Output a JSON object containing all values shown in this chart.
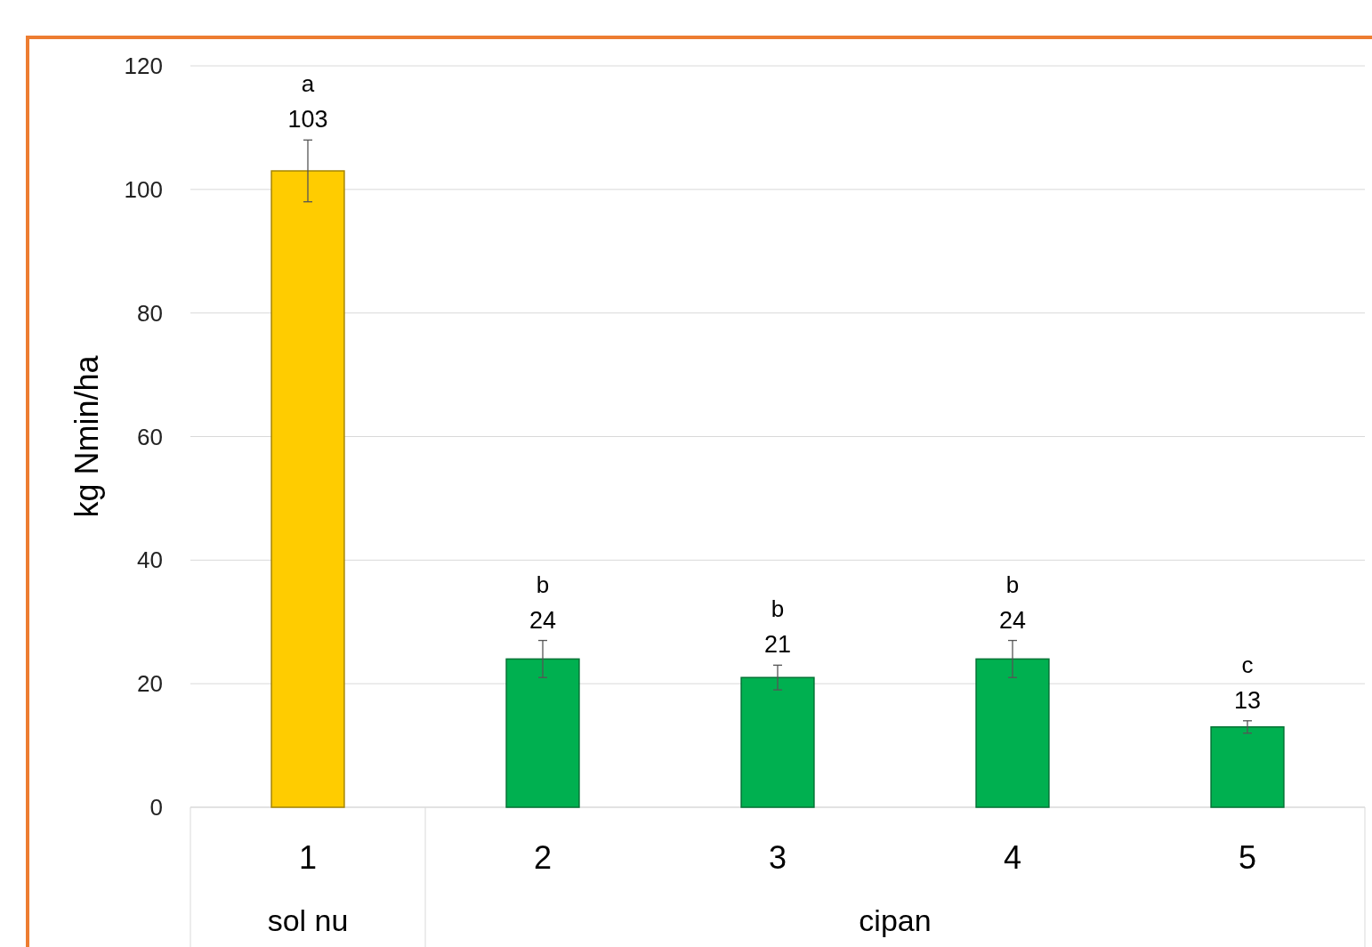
{
  "chart_data": {
    "type": "bar",
    "ylabel": "kg Nmin/ha",
    "categories": [
      "1",
      "2",
      "3",
      "4",
      "5"
    ],
    "values": [
      103,
      24,
      21,
      24,
      13
    ],
    "errors": [
      5,
      3,
      2,
      3,
      1
    ],
    "colors": [
      "#ffcc00",
      "#00b050",
      "#00b050",
      "#00b050",
      "#00b050"
    ],
    "ylim": [
      0,
      120
    ],
    "yticks": [
      0,
      20,
      40,
      60,
      80,
      100,
      120
    ],
    "grid": "y",
    "data_labels": true,
    "annotations": [
      "a",
      "b",
      "b",
      "b",
      "c",
      "sol nu",
      "cipan"
    ]
  }
}
